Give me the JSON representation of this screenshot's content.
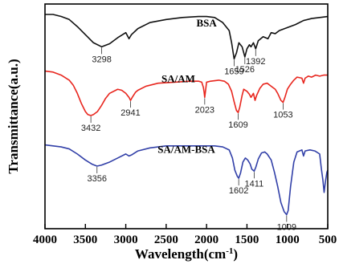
{
  "chart_data": {
    "type": "line",
    "title": "",
    "xlabel": "Wavelength(cm",
    "xlabel_superscript": "-1",
    "xlabel_suffix": ")",
    "ylabel": "Transmittance(a.u.)",
    "xlim": [
      4000,
      500
    ],
    "x_reversed": true,
    "x_ticks": [
      "4000",
      "3500",
      "3000",
      "2500",
      "2000",
      "1500",
      "1000",
      "500"
    ],
    "y_ticks_visible": false,
    "grid": false,
    "legend": "none",
    "series": [
      {
        "name": "BSA",
        "color": "#111111",
        "label_at": [
          2000,
          0.94
        ],
        "points": [
          [
            4000,
            1.0
          ],
          [
            3900,
            1.0
          ],
          [
            3800,
            0.99
          ],
          [
            3700,
            0.975
          ],
          [
            3600,
            0.94
          ],
          [
            3500,
            0.9
          ],
          [
            3400,
            0.86
          ],
          [
            3298,
            0.84
          ],
          [
            3200,
            0.855
          ],
          [
            3100,
            0.885
          ],
          [
            3000,
            0.91
          ],
          [
            2960,
            0.88
          ],
          [
            2930,
            0.9
          ],
          [
            2850,
            0.93
          ],
          [
            2700,
            0.96
          ],
          [
            2500,
            0.975
          ],
          [
            2300,
            0.985
          ],
          [
            2100,
            0.99
          ],
          [
            2000,
            0.99
          ],
          [
            1900,
            0.985
          ],
          [
            1800,
            0.96
          ],
          [
            1720,
            0.92
          ],
          [
            1690,
            0.86
          ],
          [
            1659,
            0.78
          ],
          [
            1630,
            0.81
          ],
          [
            1600,
            0.86
          ],
          [
            1560,
            0.84
          ],
          [
            1526,
            0.79
          ],
          [
            1500,
            0.83
          ],
          [
            1470,
            0.85
          ],
          [
            1450,
            0.84
          ],
          [
            1420,
            0.86
          ],
          [
            1392,
            0.83
          ],
          [
            1360,
            0.87
          ],
          [
            1300,
            0.89
          ],
          [
            1240,
            0.88
          ],
          [
            1200,
            0.91
          ],
          [
            1150,
            0.905
          ],
          [
            1100,
            0.92
          ],
          [
            1000,
            0.935
          ],
          [
            900,
            0.95
          ],
          [
            800,
            0.97
          ],
          [
            700,
            0.98
          ],
          [
            600,
            0.985
          ],
          [
            500,
            0.99
          ]
        ],
        "peaks": [
          {
            "x": 3298,
            "label": "3298"
          },
          {
            "x": 1659,
            "label": "1659"
          },
          {
            "x": 1526,
            "label": "1526"
          },
          {
            "x": 1392,
            "label": "1392"
          }
        ]
      },
      {
        "name": "SA/AM",
        "color": "#e8261e",
        "label_at": [
          2350,
          0.665
        ],
        "points": [
          [
            4000,
            0.72
          ],
          [
            3900,
            0.715
          ],
          [
            3800,
            0.7
          ],
          [
            3700,
            0.675
          ],
          [
            3650,
            0.65
          ],
          [
            3600,
            0.61
          ],
          [
            3550,
            0.56
          ],
          [
            3500,
            0.52
          ],
          [
            3470,
            0.505
          ],
          [
            3432,
            0.5
          ],
          [
            3400,
            0.505
          ],
          [
            3350,
            0.52
          ],
          [
            3300,
            0.55
          ],
          [
            3250,
            0.585
          ],
          [
            3200,
            0.61
          ],
          [
            3100,
            0.63
          ],
          [
            3050,
            0.625
          ],
          [
            3000,
            0.61
          ],
          [
            2960,
            0.59
          ],
          [
            2941,
            0.575
          ],
          [
            2920,
            0.59
          ],
          [
            2880,
            0.615
          ],
          [
            2850,
            0.625
          ],
          [
            2750,
            0.645
          ],
          [
            2600,
            0.66
          ],
          [
            2400,
            0.665
          ],
          [
            2200,
            0.67
          ],
          [
            2100,
            0.67
          ],
          [
            2060,
            0.665
          ],
          [
            2040,
            0.64
          ],
          [
            2030,
            0.615
          ],
          [
            2023,
            0.59
          ],
          [
            2015,
            0.615
          ],
          [
            2000,
            0.665
          ],
          [
            1950,
            0.67
          ],
          [
            1850,
            0.675
          ],
          [
            1780,
            0.67
          ],
          [
            1730,
            0.655
          ],
          [
            1690,
            0.62
          ],
          [
            1660,
            0.57
          ],
          [
            1630,
            0.525
          ],
          [
            1609,
            0.515
          ],
          [
            1590,
            0.54
          ],
          [
            1560,
            0.6
          ],
          [
            1540,
            0.63
          ],
          [
            1500,
            0.62
          ],
          [
            1470,
            0.605
          ],
          [
            1450,
            0.59
          ],
          [
            1420,
            0.61
          ],
          [
            1400,
            0.575
          ],
          [
            1380,
            0.6
          ],
          [
            1340,
            0.635
          ],
          [
            1300,
            0.655
          ],
          [
            1250,
            0.66
          ],
          [
            1200,
            0.645
          ],
          [
            1150,
            0.63
          ],
          [
            1120,
            0.61
          ],
          [
            1080,
            0.575
          ],
          [
            1053,
            0.565
          ],
          [
            1030,
            0.59
          ],
          [
            1000,
            0.63
          ],
          [
            960,
            0.655
          ],
          [
            920,
            0.675
          ],
          [
            880,
            0.69
          ],
          [
            820,
            0.685
          ],
          [
            800,
            0.66
          ],
          [
            780,
            0.685
          ],
          [
            740,
            0.695
          ],
          [
            700,
            0.69
          ],
          [
            650,
            0.7
          ],
          [
            600,
            0.695
          ],
          [
            550,
            0.7
          ],
          [
            500,
            0.7
          ]
        ],
        "peaks": [
          {
            "x": 3432,
            "label": "3432"
          },
          {
            "x": 2941,
            "label": "2941"
          },
          {
            "x": 2023,
            "label": "2023"
          },
          {
            "x": 1609,
            "label": "1609"
          },
          {
            "x": 1053,
            "label": "1053"
          }
        ]
      },
      {
        "name": "SA/AM-BSA",
        "color": "#3240a8",
        "label_at": [
          2250,
          0.315
        ],
        "points": [
          [
            4000,
            0.355
          ],
          [
            3900,
            0.35
          ],
          [
            3800,
            0.345
          ],
          [
            3700,
            0.335
          ],
          [
            3600,
            0.31
          ],
          [
            3500,
            0.28
          ],
          [
            3420,
            0.26
          ],
          [
            3356,
            0.25
          ],
          [
            3300,
            0.255
          ],
          [
            3200,
            0.27
          ],
          [
            3100,
            0.29
          ],
          [
            3000,
            0.31
          ],
          [
            2960,
            0.3
          ],
          [
            2930,
            0.305
          ],
          [
            2850,
            0.325
          ],
          [
            2700,
            0.34
          ],
          [
            2500,
            0.35
          ],
          [
            2300,
            0.35
          ],
          [
            2100,
            0.35
          ],
          [
            2000,
            0.35
          ],
          [
            1900,
            0.35
          ],
          [
            1800,
            0.345
          ],
          [
            1720,
            0.33
          ],
          [
            1680,
            0.29
          ],
          [
            1650,
            0.23
          ],
          [
            1620,
            0.2
          ],
          [
            1602,
            0.19
          ],
          [
            1580,
            0.215
          ],
          [
            1550,
            0.27
          ],
          [
            1520,
            0.29
          ],
          [
            1490,
            0.28
          ],
          [
            1460,
            0.26
          ],
          [
            1440,
            0.235
          ],
          [
            1411,
            0.225
          ],
          [
            1390,
            0.245
          ],
          [
            1360,
            0.285
          ],
          [
            1320,
            0.315
          ],
          [
            1280,
            0.32
          ],
          [
            1250,
            0.31
          ],
          [
            1200,
            0.28
          ],
          [
            1160,
            0.22
          ],
          [
            1120,
            0.15
          ],
          [
            1080,
            0.07
          ],
          [
            1040,
            0.025
          ],
          [
            1009,
            0.01
          ],
          [
            990,
            0.03
          ],
          [
            960,
            0.15
          ],
          [
            920,
            0.27
          ],
          [
            880,
            0.32
          ],
          [
            820,
            0.33
          ],
          [
            800,
            0.3
          ],
          [
            780,
            0.325
          ],
          [
            720,
            0.33
          ],
          [
            660,
            0.325
          ],
          [
            600,
            0.31
          ],
          [
            580,
            0.24
          ],
          [
            560,
            0.18
          ],
          [
            545,
            0.12
          ],
          [
            530,
            0.17
          ],
          [
            510,
            0.22
          ],
          [
            500,
            0.23
          ]
        ],
        "peaks": [
          {
            "x": 3356,
            "label": "3356"
          },
          {
            "x": 1602,
            "label": "1602"
          },
          {
            "x": 1411,
            "label": "1411"
          },
          {
            "x": 1009,
            "label": "1009"
          }
        ]
      }
    ]
  }
}
